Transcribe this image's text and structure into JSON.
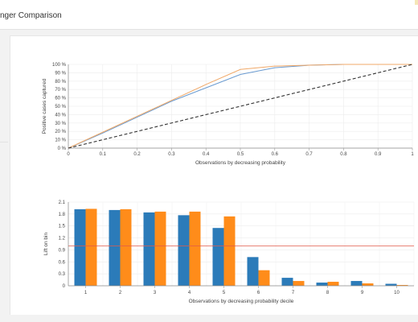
{
  "window": {
    "title": "nger Comparison"
  },
  "chart_data": [
    {
      "type": "line",
      "xlabel": "Observations by decreasing probability",
      "ylabel": "Positive cases captured",
      "xlim": [
        0,
        1
      ],
      "ylim": [
        0,
        100
      ],
      "x_ticks": [
        "0",
        "0.1",
        "0.2",
        "0.3",
        "0.4",
        "0.5",
        "0.6",
        "0.7",
        "0.8",
        "0.9",
        "1"
      ],
      "y_ticks": [
        "0 %",
        "10 %",
        "20 %",
        "30 %",
        "40 %",
        "50 %",
        "60 %",
        "70 %",
        "80 %",
        "90 %",
        "100 %"
      ],
      "grid": true,
      "series": [
        {
          "color": "#6a9bd1",
          "x": [
            0,
            0.1,
            0.2,
            0.3,
            0.4,
            0.5,
            0.6,
            0.7,
            0.8,
            0.9,
            1
          ],
          "y": [
            0,
            18,
            37,
            56,
            72,
            88,
            96,
            99,
            100,
            100,
            100
          ]
        },
        {
          "color": "#f0a868",
          "x": [
            0,
            0.1,
            0.2,
            0.3,
            0.4,
            0.5,
            0.6,
            0.7,
            0.8,
            0.9,
            1
          ],
          "y": [
            0,
            19,
            38,
            57,
            76,
            94,
            98,
            99,
            100,
            100,
            100
          ]
        },
        {
          "color": "#333333",
          "dashed": true,
          "x": [
            0,
            1
          ],
          "y": [
            0,
            100
          ]
        }
      ]
    },
    {
      "type": "bar",
      "xlabel": "Observations by decreasing probability decile",
      "ylabel": "Lift on bin",
      "categories": [
        "1",
        "2",
        "3",
        "4",
        "5",
        "6",
        "7",
        "8",
        "9",
        "10"
      ],
      "ylim": [
        0,
        2.1
      ],
      "y_ticks": [
        "0",
        "0.3",
        "0.6",
        "0.9",
        "1.2",
        "1.5",
        "1.8",
        "2.1"
      ],
      "grid": true,
      "reference_line": {
        "y": 1.0,
        "color": "#e05a4b"
      },
      "series": [
        {
          "color": "#2b7bb9",
          "values": [
            1.92,
            1.9,
            1.84,
            1.77,
            1.45,
            0.72,
            0.2,
            0.08,
            0.12,
            0.05
          ]
        },
        {
          "color": "#ff8c1a",
          "values": [
            1.93,
            1.92,
            1.86,
            1.86,
            1.74,
            0.39,
            0.12,
            0.1,
            0.06,
            0.02
          ]
        }
      ]
    }
  ]
}
